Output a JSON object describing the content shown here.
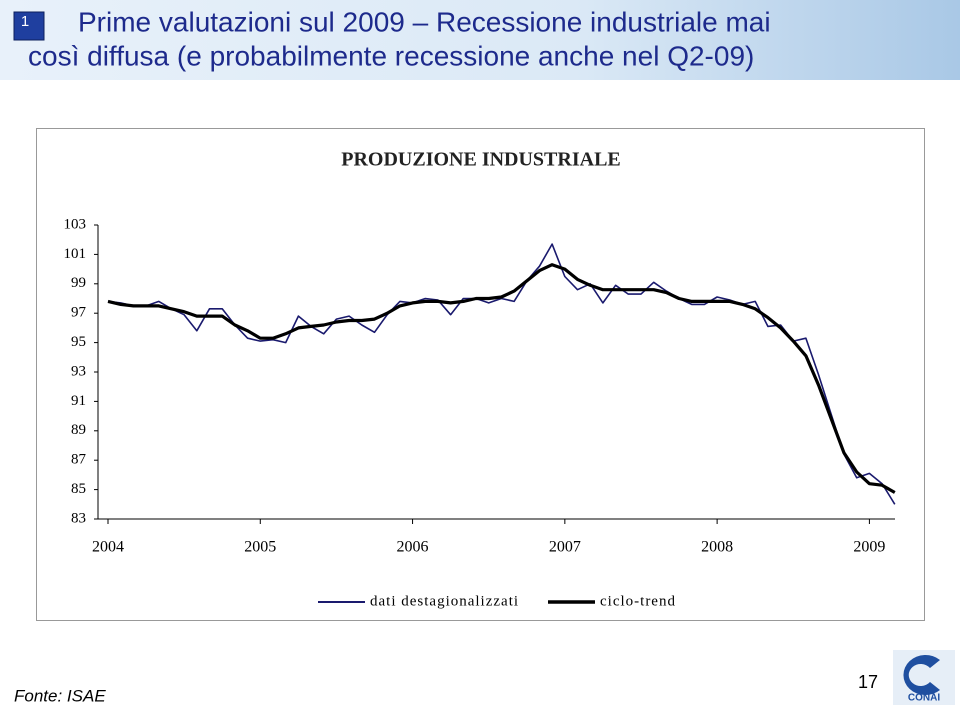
{
  "slide": {
    "number": "1",
    "title": [
      "Prime valutazioni sul 2009 – Recessione industriale mai",
      "così diffusa (e probabilmente recessione anche nel Q2-09)"
    ]
  },
  "chart_data": {
    "type": "line",
    "title": "PRODUZIONE INDUSTRIALE",
    "categories": [
      "2004",
      null,
      null,
      null,
      null,
      null,
      null,
      null,
      null,
      null,
      null,
      null,
      "2005",
      null,
      null,
      null,
      null,
      null,
      null,
      null,
      null,
      null,
      null,
      null,
      "2006",
      null,
      null,
      null,
      null,
      null,
      null,
      null,
      null,
      null,
      null,
      null,
      "2007",
      null,
      null,
      null,
      null,
      null,
      null,
      null,
      null,
      null,
      null,
      null,
      "2008",
      null,
      null,
      null,
      null,
      null,
      null,
      null,
      null,
      null,
      null,
      null,
      "2009",
      null,
      null
    ],
    "series": [
      {
        "name": "dati destagionalizzati",
        "color": "#1a1a6e",
        "width": 1.6,
        "values": [
          97.8,
          97.7,
          97.5,
          97.5,
          97.8,
          97.3,
          96.9,
          95.8,
          97.3,
          97.3,
          96.2,
          95.3,
          95.1,
          95.2,
          95.0,
          96.8,
          96.1,
          95.6,
          96.6,
          96.8,
          96.2,
          95.7,
          96.9,
          97.8,
          97.7,
          98.0,
          97.9,
          96.9,
          98.0,
          98.0,
          97.7,
          98.0,
          97.8,
          99.2,
          100.2,
          101.7,
          99.5,
          98.6,
          99.0,
          97.7,
          98.9,
          98.3,
          98.3,
          99.1,
          98.5,
          98.0,
          97.6,
          97.6,
          98.1,
          97.9,
          97.6,
          97.8,
          96.1,
          96.2,
          95.1,
          95.3,
          92.8,
          90.1,
          87.4,
          85.8,
          86.1,
          85.4,
          84.0
        ]
      },
      {
        "name": "ciclo-trend",
        "color": "#000000",
        "width": 3.2,
        "values": [
          97.8,
          97.6,
          97.5,
          97.5,
          97.5,
          97.3,
          97.1,
          96.8,
          96.8,
          96.8,
          96.2,
          95.8,
          95.3,
          95.3,
          95.6,
          96.0,
          96.1,
          96.2,
          96.4,
          96.5,
          96.5,
          96.6,
          97.0,
          97.5,
          97.7,
          97.8,
          97.8,
          97.7,
          97.8,
          98.0,
          98.0,
          98.1,
          98.5,
          99.2,
          99.9,
          100.3,
          100.0,
          99.3,
          98.9,
          98.6,
          98.6,
          98.6,
          98.6,
          98.6,
          98.4,
          98.0,
          97.8,
          97.8,
          97.8,
          97.8,
          97.6,
          97.3,
          96.7,
          96.0,
          95.1,
          94.1,
          92.1,
          89.8,
          87.5,
          86.2,
          85.4,
          85.3,
          84.8
        ]
      }
    ],
    "ylim": [
      83,
      103
    ],
    "yticks": [
      83,
      85,
      87,
      89,
      91,
      93,
      95,
      97,
      99,
      101,
      103
    ]
  },
  "source": "Fonte: ISAE",
  "page": "17",
  "logo": "CONAI"
}
